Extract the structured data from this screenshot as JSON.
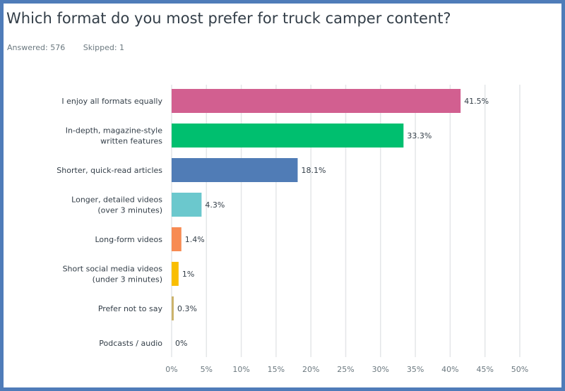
{
  "header": {
    "title": "Which format do you most prefer for truck camper content?",
    "answered": "Answered: 576",
    "skipped": "Skipped: 1"
  },
  "colors": {
    "frame": "#4f7cb9",
    "grid": "#e4e6e8"
  },
  "chart_data": {
    "type": "bar",
    "orientation": "horizontal",
    "title": "Which format do you most prefer for truck camper content?",
    "categories": [
      [
        "I enjoy all formats equally"
      ],
      [
        "In-depth, magazine-style",
        "written features"
      ],
      [
        "Shorter, quick-read articles"
      ],
      [
        "Longer, detailed videos",
        "(over 3 minutes)"
      ],
      [
        "Long-form videos"
      ],
      [
        "Short social media videos",
        "(under 3 minutes)"
      ],
      [
        "Prefer not to say"
      ],
      [
        "Podcasts / audio"
      ]
    ],
    "values": [
      41.5,
      33.3,
      18.1,
      4.3,
      1.4,
      1,
      0.3,
      0
    ],
    "value_labels": [
      "41.5%",
      "33.3%",
      "18.1%",
      "4.3%",
      "1.4%",
      "1%",
      "0.3%",
      "0%"
    ],
    "bar_colors": [
      "#d25f90",
      "#00bf6f",
      "#507cb6",
      "#6bc8cd",
      "#f78b53",
      "#f9be00",
      "#cbb26a",
      "#9ea5a9"
    ],
    "xlim": [
      0,
      50
    ],
    "xticks": [
      "0%",
      "5%",
      "10%",
      "15%",
      "20%",
      "25%",
      "30%",
      "35%",
      "40%",
      "45%",
      "50%"
    ],
    "grid": true,
    "legend": "none"
  }
}
